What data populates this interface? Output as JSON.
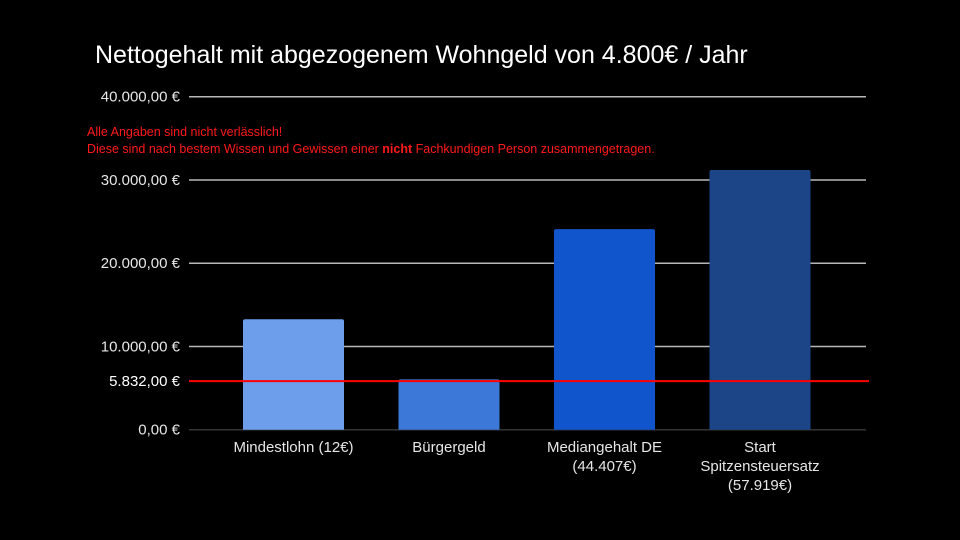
{
  "chart_data": {
    "type": "bar",
    "title": "Nettogehalt mit abgezogenem Wohngeld von 4.800€ / Jahr",
    "xlabel": "",
    "ylabel": "",
    "ylim": [
      0,
      40000
    ],
    "grid": true,
    "legend": "none",
    "y_ticks": [
      {
        "value": 0,
        "label": "0,00 €"
      },
      {
        "value": 10000,
        "label": "10.000,00 €"
      },
      {
        "value": 20000,
        "label": "20.000,00 €"
      },
      {
        "value": 30000,
        "label": "30.000,00 €"
      },
      {
        "value": 40000,
        "label": "40.000,00 €"
      }
    ],
    "categories": [
      [
        "Mindestlohn (12€)"
      ],
      [
        "Bürgergeld"
      ],
      [
        "Mediangehalt DE",
        "(44.407€)"
      ],
      [
        "Start",
        "Spitzensteuersatz",
        "(57.919€)"
      ]
    ],
    "values": [
      13260,
      6050,
      24100,
      31200
    ],
    "bar_colors": [
      "#6d9eeb",
      "#3c78d8",
      "#1155cc",
      "#1c4587"
    ],
    "reference_line": {
      "value": 5832,
      "label": "5.832,00 €",
      "color": "#ff0000"
    }
  },
  "annotation": {
    "line1": "Alle Angaben sind nicht verlässlich!",
    "line2_before": "Diese sind nach bestem Wissen und Gewissen einer ",
    "line2_bold": "nicht",
    "line2_after": " Fachkundigen Person zusammengetragen."
  }
}
